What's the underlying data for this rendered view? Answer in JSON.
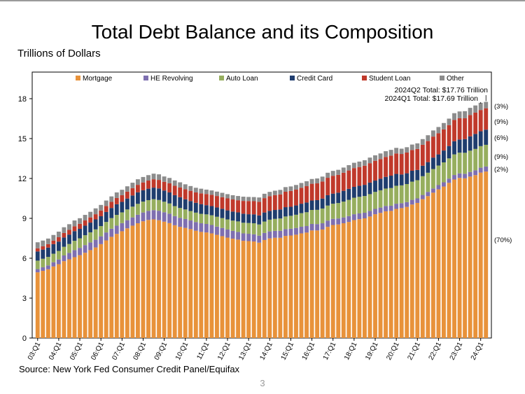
{
  "slide": {
    "title": "Total Debt Balance and its Composition",
    "units_label": "Trillions of Dollars",
    "source": "Source: New York Fed Consumer Credit Panel/Equifax",
    "page_number": "3"
  },
  "chart_data": {
    "type": "bar",
    "stacked": true,
    "title": "Total Debt Balance and its Composition",
    "ylabel": "Trillions of Dollars",
    "xlabel": "",
    "ylim": [
      0,
      20
    ],
    "yticks": [
      0,
      3,
      6,
      9,
      12,
      15,
      18
    ],
    "grid": false,
    "legend_position": "top",
    "x_tick_labels": [
      "03:Q1",
      "04:Q1",
      "05:Q1",
      "06:Q1",
      "07:Q1",
      "08:Q1",
      "09:Q1",
      "10:Q1",
      "11:Q1",
      "12:Q1",
      "13:Q1",
      "14:Q1",
      "15:Q1",
      "16:Q1",
      "17:Q1",
      "18:Q1",
      "19:Q1",
      "20:Q1",
      "21:Q1",
      "22:Q1",
      "23:Q1",
      "24:Q1"
    ],
    "categories": [
      "2003Q1",
      "2003Q2",
      "2003Q3",
      "2003Q4",
      "2004Q1",
      "2004Q2",
      "2004Q3",
      "2004Q4",
      "2005Q1",
      "2005Q2",
      "2005Q3",
      "2005Q4",
      "2006Q1",
      "2006Q2",
      "2006Q3",
      "2006Q4",
      "2007Q1",
      "2007Q2",
      "2007Q3",
      "2007Q4",
      "2008Q1",
      "2008Q2",
      "2008Q3",
      "2008Q4",
      "2009Q1",
      "2009Q2",
      "2009Q3",
      "2009Q4",
      "2010Q1",
      "2010Q2",
      "2010Q3",
      "2010Q4",
      "2011Q1",
      "2011Q2",
      "2011Q3",
      "2011Q4",
      "2012Q1",
      "2012Q2",
      "2012Q3",
      "2012Q4",
      "2013Q1",
      "2013Q2",
      "2013Q3",
      "2013Q4",
      "2014Q1",
      "2014Q2",
      "2014Q3",
      "2014Q4",
      "2015Q1",
      "2015Q2",
      "2015Q3",
      "2015Q4",
      "2016Q1",
      "2016Q2",
      "2016Q3",
      "2016Q4",
      "2017Q1",
      "2017Q2",
      "2017Q3",
      "2017Q4",
      "2018Q1",
      "2018Q2",
      "2018Q3",
      "2018Q4",
      "2019Q1",
      "2019Q2",
      "2019Q3",
      "2019Q4",
      "2020Q1",
      "2020Q2",
      "2020Q3",
      "2020Q4",
      "2021Q1",
      "2021Q2",
      "2021Q3",
      "2021Q4",
      "2022Q1",
      "2022Q2",
      "2022Q3",
      "2022Q4",
      "2023Q1",
      "2023Q2",
      "2023Q3",
      "2023Q4",
      "2024Q1",
      "2024Q2"
    ],
    "series": [
      {
        "name": "Mortgage",
        "color": "#E8923A",
        "values": [
          4.94,
          5.05,
          5.17,
          5.38,
          5.55,
          5.78,
          5.92,
          6.08,
          6.23,
          6.41,
          6.61,
          6.81,
          7.06,
          7.34,
          7.61,
          7.83,
          8.03,
          8.25,
          8.45,
          8.63,
          8.78,
          8.88,
          8.92,
          8.86,
          8.75,
          8.64,
          8.48,
          8.36,
          8.28,
          8.19,
          8.07,
          7.98,
          7.94,
          7.87,
          7.76,
          7.66,
          7.55,
          7.47,
          7.4,
          7.31,
          7.29,
          7.26,
          7.17,
          7.37,
          7.49,
          7.54,
          7.54,
          7.68,
          7.71,
          7.77,
          7.87,
          7.93,
          8.09,
          8.09,
          8.16,
          8.36,
          8.5,
          8.54,
          8.63,
          8.73,
          8.87,
          8.94,
          9.0,
          9.14,
          9.31,
          9.41,
          9.53,
          9.56,
          9.71,
          9.77,
          9.86,
          10.04,
          10.16,
          10.44,
          10.67,
          10.93,
          11.18,
          11.39,
          11.67,
          11.92,
          12.04,
          12.01,
          12.14,
          12.25,
          12.44,
          12.52
        ]
      },
      {
        "name": "HE Revolving",
        "color": "#7E6FB0",
        "values": [
          0.24,
          0.27,
          0.29,
          0.32,
          0.36,
          0.43,
          0.48,
          0.53,
          0.55,
          0.58,
          0.58,
          0.58,
          0.59,
          0.6,
          0.61,
          0.62,
          0.61,
          0.61,
          0.62,
          0.64,
          0.66,
          0.68,
          0.7,
          0.71,
          0.71,
          0.71,
          0.69,
          0.68,
          0.67,
          0.65,
          0.65,
          0.65,
          0.64,
          0.63,
          0.62,
          0.62,
          0.61,
          0.59,
          0.58,
          0.56,
          0.55,
          0.54,
          0.53,
          0.53,
          0.53,
          0.52,
          0.52,
          0.51,
          0.51,
          0.51,
          0.5,
          0.49,
          0.49,
          0.48,
          0.47,
          0.47,
          0.46,
          0.45,
          0.44,
          0.44,
          0.44,
          0.43,
          0.42,
          0.41,
          0.4,
          0.4,
          0.4,
          0.39,
          0.39,
          0.37,
          0.36,
          0.35,
          0.34,
          0.32,
          0.32,
          0.32,
          0.32,
          0.32,
          0.32,
          0.34,
          0.34,
          0.34,
          0.35,
          0.36,
          0.37,
          0.38
        ]
      },
      {
        "name": "Auto Loan",
        "color": "#96AE5E",
        "values": [
          0.64,
          0.64,
          0.64,
          0.64,
          0.64,
          0.65,
          0.67,
          0.7,
          0.72,
          0.74,
          0.76,
          0.78,
          0.77,
          0.79,
          0.8,
          0.81,
          0.81,
          0.81,
          0.81,
          0.82,
          0.82,
          0.81,
          0.82,
          0.81,
          0.79,
          0.77,
          0.75,
          0.74,
          0.72,
          0.71,
          0.71,
          0.71,
          0.72,
          0.73,
          0.74,
          0.74,
          0.76,
          0.77,
          0.79,
          0.8,
          0.81,
          0.83,
          0.84,
          0.86,
          0.88,
          0.9,
          0.93,
          0.95,
          0.97,
          0.99,
          1.02,
          1.04,
          1.05,
          1.07,
          1.11,
          1.13,
          1.14,
          1.16,
          1.19,
          1.22,
          1.24,
          1.25,
          1.26,
          1.27,
          1.28,
          1.3,
          1.31,
          1.33,
          1.35,
          1.34,
          1.36,
          1.37,
          1.37,
          1.41,
          1.44,
          1.46,
          1.47,
          1.5,
          1.52,
          1.55,
          1.56,
          1.58,
          1.6,
          1.61,
          1.62,
          1.63
        ]
      },
      {
        "name": "Credit Card",
        "color": "#1F3D6E",
        "values": [
          0.69,
          0.69,
          0.7,
          0.72,
          0.7,
          0.7,
          0.71,
          0.73,
          0.71,
          0.72,
          0.73,
          0.75,
          0.74,
          0.75,
          0.76,
          0.8,
          0.79,
          0.82,
          0.84,
          0.87,
          0.85,
          0.86,
          0.87,
          0.87,
          0.84,
          0.83,
          0.82,
          0.81,
          0.76,
          0.75,
          0.74,
          0.73,
          0.69,
          0.69,
          0.7,
          0.7,
          0.68,
          0.68,
          0.68,
          0.68,
          0.66,
          0.67,
          0.68,
          0.68,
          0.66,
          0.67,
          0.68,
          0.7,
          0.68,
          0.7,
          0.71,
          0.73,
          0.71,
          0.73,
          0.75,
          0.78,
          0.76,
          0.78,
          0.81,
          0.83,
          0.82,
          0.83,
          0.84,
          0.87,
          0.85,
          0.87,
          0.88,
          0.93,
          0.89,
          0.82,
          0.81,
          0.82,
          0.77,
          0.79,
          0.8,
          0.86,
          0.84,
          0.89,
          0.93,
          0.99,
          0.99,
          1.03,
          1.08,
          1.13,
          1.12,
          1.14
        ]
      },
      {
        "name": "Student Loan",
        "color": "#C0392B",
        "values": [
          0.24,
          0.25,
          0.26,
          0.26,
          0.33,
          0.34,
          0.35,
          0.36,
          0.38,
          0.39,
          0.39,
          0.39,
          0.43,
          0.45,
          0.46,
          0.47,
          0.5,
          0.52,
          0.55,
          0.56,
          0.59,
          0.61,
          0.63,
          0.64,
          0.66,
          0.69,
          0.71,
          0.73,
          0.76,
          0.77,
          0.78,
          0.81,
          0.84,
          0.85,
          0.86,
          0.87,
          0.9,
          0.91,
          0.91,
          0.96,
          0.99,
          0.99,
          1.03,
          1.08,
          1.11,
          1.12,
          1.13,
          1.16,
          1.19,
          1.19,
          1.2,
          1.23,
          1.26,
          1.26,
          1.28,
          1.31,
          1.34,
          1.34,
          1.36,
          1.38,
          1.41,
          1.41,
          1.44,
          1.46,
          1.49,
          1.48,
          1.5,
          1.51,
          1.54,
          1.54,
          1.56,
          1.56,
          1.58,
          1.57,
          1.58,
          1.58,
          1.59,
          1.59,
          1.57,
          1.6,
          1.6,
          1.57,
          1.6,
          1.6,
          1.6,
          1.61
        ]
      },
      {
        "name": "Other",
        "color": "#8C8C8C",
        "values": [
          0.45,
          0.43,
          0.42,
          0.43,
          0.42,
          0.43,
          0.43,
          0.44,
          0.42,
          0.42,
          0.42,
          0.44,
          0.42,
          0.41,
          0.41,
          0.42,
          0.41,
          0.4,
          0.41,
          0.42,
          0.41,
          0.41,
          0.42,
          0.42,
          0.4,
          0.4,
          0.4,
          0.39,
          0.37,
          0.36,
          0.35,
          0.35,
          0.33,
          0.33,
          0.33,
          0.33,
          0.32,
          0.32,
          0.32,
          0.32,
          0.31,
          0.31,
          0.32,
          0.33,
          0.32,
          0.33,
          0.34,
          0.35,
          0.34,
          0.35,
          0.36,
          0.37,
          0.36,
          0.37,
          0.37,
          0.38,
          0.37,
          0.38,
          0.39,
          0.4,
          0.4,
          0.41,
          0.41,
          0.42,
          0.41,
          0.42,
          0.43,
          0.43,
          0.42,
          0.4,
          0.4,
          0.41,
          0.42,
          0.43,
          0.44,
          0.46,
          0.47,
          0.48,
          0.49,
          0.51,
          0.51,
          0.53,
          0.54,
          0.54,
          0.54,
          0.48
        ]
      }
    ],
    "annotations": {
      "total_q2": "2024Q2 Total: $17.76 Trillion",
      "total_q1": "2024Q1 Total: $17.69 Trillion",
      "shares": [
        {
          "series": "Other",
          "label": "(3%)"
        },
        {
          "series": "Student Loan",
          "label": "(9%)"
        },
        {
          "series": "Credit Card",
          "label": "(6%)"
        },
        {
          "series": "Auto Loan",
          "label": "(9%)"
        },
        {
          "series": "HE Revolving",
          "label": "(2%)"
        },
        {
          "series": "Mortgage",
          "label": "(70%)"
        }
      ]
    }
  }
}
